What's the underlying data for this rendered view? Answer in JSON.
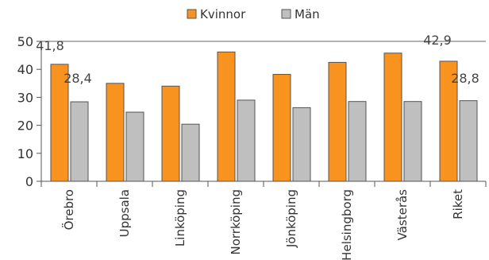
{
  "chart_data": {
    "type": "bar",
    "categories": [
      "Örebro",
      "Uppsala",
      "Linköping",
      "Norrköping",
      "Jönköping",
      "Helsingborg",
      "Västerås",
      "Riket"
    ],
    "series": [
      {
        "name": "Kvinnor",
        "color": "#F7931E",
        "values": [
          41.8,
          35.0,
          34.0,
          46.2,
          38.2,
          42.5,
          45.8,
          42.9
        ]
      },
      {
        "name": "Män",
        "color": "#BFBFBF",
        "values": [
          28.4,
          24.7,
          20.4,
          29.0,
          26.3,
          28.5,
          28.5,
          28.8
        ]
      }
    ],
    "data_labels": [
      {
        "category": "Örebro",
        "series": "Kvinnor",
        "text": "41,8"
      },
      {
        "category": "Örebro",
        "series": "Män",
        "text": "28,4"
      },
      {
        "category": "Riket",
        "series": "Kvinnor",
        "text": "42,9"
      },
      {
        "category": "Riket",
        "series": "Män",
        "text": "28,8"
      }
    ],
    "yticks": [
      "0",
      "10",
      "20",
      "30",
      "40",
      "50"
    ],
    "ylim": [
      0,
      50
    ],
    "legend": "top-center",
    "grid": false
  }
}
